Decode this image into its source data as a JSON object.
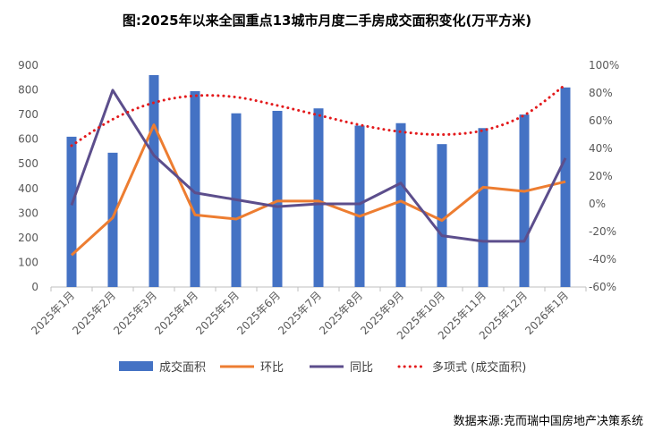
{
  "title": "图:2025年以来全国重点13城市月度二手房成交面积变化(万平方米)",
  "source": "数据来源:克而瑞中国房地产决策系统",
  "chart_data": {
    "type": "bar",
    "categories": [
      "2025年1月",
      "2025年2月",
      "2025年3月",
      "2025年4月",
      "2025年5月",
      "2025年6月",
      "2025年7月",
      "2025年8月",
      "2025年9月",
      "2025年10月",
      "2025年11月",
      "2025年12月",
      "2026年1月"
    ],
    "ylim": [
      0,
      900
    ],
    "yticks": [
      0,
      100,
      200,
      300,
      400,
      500,
      600,
      700,
      800,
      900
    ],
    "y2lim": [
      -60,
      100
    ],
    "y2ticks": [
      -60,
      -40,
      -20,
      0,
      20,
      40,
      60,
      80,
      100
    ],
    "y2tick_labels": [
      "-60%",
      "-40%",
      "-20%",
      "0%",
      "20%",
      "40%",
      "60%",
      "80%",
      "100%"
    ],
    "grid": false,
    "legend_position": "bottom",
    "series": [
      {
        "name": "成交面积",
        "type": "bar",
        "axis": "left",
        "color": "#4472C4",
        "values": [
          610,
          545,
          860,
          795,
          705,
          715,
          725,
          655,
          665,
          580,
          645,
          700,
          810
        ]
      },
      {
        "name": "环比",
        "type": "line",
        "axis": "right",
        "color": "#ED7D31",
        "values": [
          -37,
          -10,
          57,
          -8,
          -11,
          2,
          2,
          -9,
          2,
          -12,
          12,
          9,
          16
        ]
      },
      {
        "name": "同比",
        "type": "line",
        "axis": "right",
        "color": "#5C4E8C",
        "values": [
          -1,
          82,
          35,
          8,
          3,
          -2,
          0,
          0,
          15,
          -23,
          -27,
          -27,
          33
        ]
      },
      {
        "name": "多项式 (成交面积)",
        "type": "trendline",
        "axis": "right",
        "color": "#E31A1C",
        "values": [
          42,
          61,
          73,
          78,
          77,
          71,
          64,
          57,
          52,
          50,
          53,
          64,
          86
        ]
      }
    ]
  }
}
